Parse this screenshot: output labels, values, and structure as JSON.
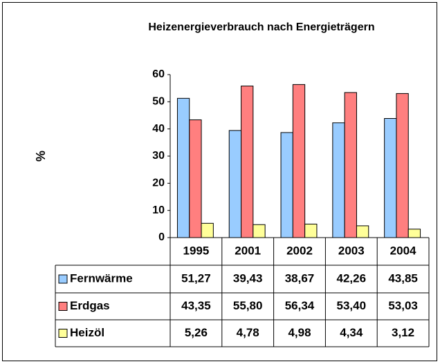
{
  "chart_data": {
    "type": "bar",
    "title": "Heizenergieverbrauch nach Energieträgern",
    "y_label": "%",
    "categories": [
      "1995",
      "2001",
      "2002",
      "2003",
      "2004"
    ],
    "series": [
      {
        "name": "Fernwärme",
        "color": "#99ccff",
        "values": [
          51.27,
          39.43,
          38.67,
          42.26,
          43.85
        ],
        "value_labels": [
          "51,27",
          "39,43",
          "38,67",
          "42,26",
          "43,85"
        ]
      },
      {
        "name": "Erdgas",
        "color": "#ff7f7f",
        "values": [
          43.35,
          55.8,
          56.34,
          53.4,
          53.03
        ],
        "value_labels": [
          "43,35",
          "55,80",
          "56,34",
          "53,40",
          "53,03"
        ]
      },
      {
        "name": "Heizöl",
        "color": "#ffff99",
        "values": [
          5.26,
          4.78,
          4.98,
          4.34,
          3.12
        ],
        "value_labels": [
          "5,26",
          "4,78",
          "4,98",
          "4,34",
          "3,12"
        ]
      }
    ],
    "ylim": [
      0,
      60
    ],
    "yticks": [
      0,
      10,
      20,
      30,
      40,
      50,
      60
    ],
    "grid": false
  }
}
